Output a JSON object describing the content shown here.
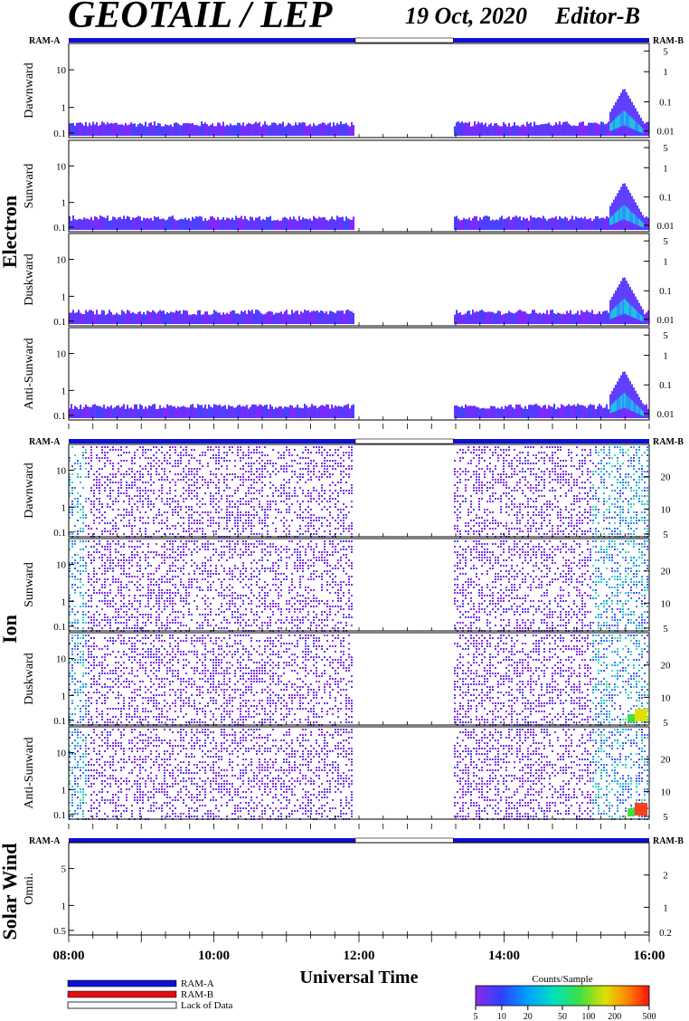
{
  "header": {
    "title": "GEOTAIL / LEP",
    "date": "19 Oct, 2020",
    "editor": "Editor-B"
  },
  "ram_labels": {
    "left": "RAM-A",
    "right": "RAM-B"
  },
  "group_labels": {
    "electron": "Electron",
    "ion": "Ion",
    "solar_wind": "Solar Wind"
  },
  "x_axis": {
    "label": "Universal Time",
    "ticks": [
      "08:00",
      "10:00",
      "12:00",
      "14:00",
      "16:00"
    ],
    "range_hours": [
      8,
      16
    ]
  },
  "legend": {
    "ram_a": "RAM-A",
    "ram_b": "RAM-B",
    "lack": "Lack of Data",
    "colors": {
      "ram_a": "#1010d0",
      "ram_b": "#e01010"
    }
  },
  "colorbar": {
    "title": "Counts/Sample",
    "ticks": [
      "5",
      "10",
      "20",
      "50",
      "100",
      "200",
      "500"
    ],
    "range": [
      5,
      500
    ]
  },
  "chart_data": [
    {
      "type": "heatmap",
      "group": "Electron",
      "ylabel": "Dawnward",
      "left_ticks": [
        "10",
        "1",
        "0.1"
      ],
      "right_ticks": [
        "5",
        "1",
        "0.1",
        "0.01"
      ]
    },
    {
      "type": "heatmap",
      "group": "Electron",
      "ylabel": "Sunward",
      "left_ticks": [
        "10",
        "1",
        "0.1"
      ],
      "right_ticks": [
        "5",
        "1",
        "0.1",
        "0.01"
      ]
    },
    {
      "type": "heatmap",
      "group": "Electron",
      "ylabel": "Duskward",
      "left_ticks": [
        "10",
        "1",
        "0.1"
      ],
      "right_ticks": [
        "5",
        "1",
        "0.1",
        "0.01"
      ]
    },
    {
      "type": "heatmap",
      "group": "Electron",
      "ylabel": "Anti-Sunward",
      "left_ticks": [
        "10",
        "1",
        "0.1"
      ],
      "right_ticks": [
        "5",
        "1",
        "0.1",
        "0.01"
      ]
    },
    {
      "type": "heatmap",
      "group": "Ion",
      "ylabel": "Dawnward",
      "left_ticks": [
        "10",
        "1",
        "0.1"
      ],
      "right_ticks": [
        "20",
        "10",
        "5"
      ]
    },
    {
      "type": "heatmap",
      "group": "Ion",
      "ylabel": "Sunward",
      "left_ticks": [
        "10",
        "1",
        "0.1"
      ],
      "right_ticks": [
        "20",
        "10",
        "5"
      ]
    },
    {
      "type": "heatmap",
      "group": "Ion",
      "ylabel": "Duskward",
      "left_ticks": [
        "10",
        "1",
        "0.1"
      ],
      "right_ticks": [
        "20",
        "10",
        "5"
      ]
    },
    {
      "type": "heatmap",
      "group": "Ion",
      "ylabel": "Anti-Sunward",
      "left_ticks": [
        "10",
        "1",
        "0.1"
      ],
      "right_ticks": [
        "20",
        "10",
        "5"
      ]
    },
    {
      "type": "heatmap",
      "group": "Solar Wind",
      "ylabel": "Omni.",
      "left_ticks": [
        "5",
        "1",
        "0.5"
      ],
      "right_ticks": [
        "2",
        "1",
        "0.2"
      ]
    }
  ],
  "data_gap_hours": [
    11.95,
    13.3
  ]
}
